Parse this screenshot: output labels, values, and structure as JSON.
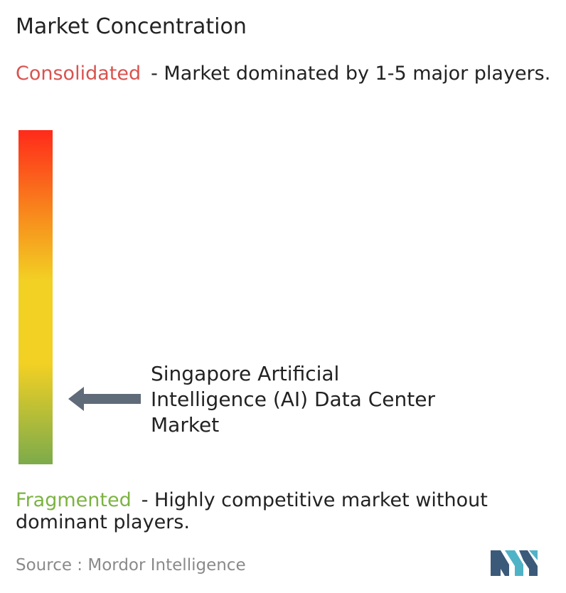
{
  "title": "Market Concentration",
  "consolidated": {
    "label": "Consolidated",
    "description": "- Market dominated by 1-5 major players.",
    "color": "#d9534f"
  },
  "fragmented": {
    "label": "Fragmented",
    "description": "- Highly competitive market without dominant players.",
    "color": "#7cb342"
  },
  "chart_data": {
    "type": "gradient-scale",
    "scale": {
      "top": "Consolidated",
      "bottom": "Fragmented",
      "colors": [
        "#ff2a1a",
        "#f7941d",
        "#f2d024",
        "#f2d024",
        "#7cab4b"
      ]
    },
    "marker": {
      "label": "Singapore Artificial Intelligence (AI) Data Center Market",
      "position_fraction_from_top": 0.81,
      "arrow_color": "#5f6b78"
    }
  },
  "source": {
    "text": "Source :  Mordor Intelligence"
  },
  "logo": {
    "colors": [
      "#3b5a7a",
      "#4fb3c7"
    ]
  }
}
